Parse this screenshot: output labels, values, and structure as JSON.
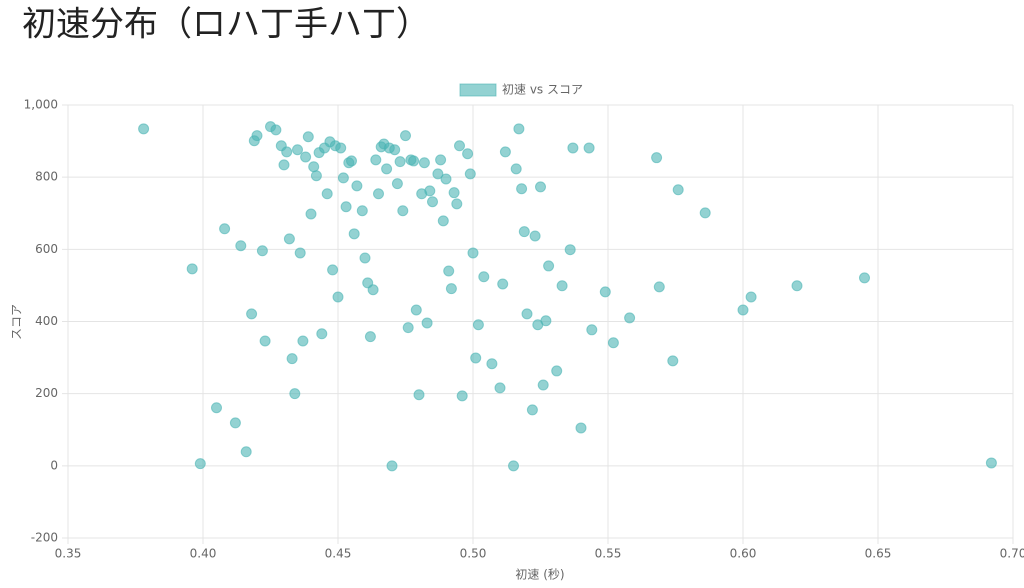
{
  "chart_data": {
    "type": "scatter",
    "title": "初速分布（ロハ丁手ハ丁）",
    "xlabel": "初速 (秒)",
    "ylabel": "スコア",
    "xlim": [
      0.35,
      0.7
    ],
    "xticks": [
      0.35,
      {
        "value": 0.4,
        "label": "0.40"
      },
      0.45,
      {
        "value": 0.5,
        "label": "0.50"
      },
      0.55,
      {
        "value": 0.6,
        "label": "0.60"
      },
      0.65,
      {
        "value": 0.7,
        "label": "0.70"
      }
    ],
    "ylim": [
      -200,
      1000
    ],
    "yticks": [
      -200,
      0,
      200,
      400,
      600,
      800,
      {
        "value": 1000,
        "label": "1,000"
      }
    ],
    "grid": true,
    "legend": "top",
    "series": [
      {
        "name": "初速 vs スコア",
        "color": "rgba(75,180,180,0.6)",
        "x": [
          0.378,
          0.396,
          0.399,
          0.405,
          0.408,
          0.412,
          0.414,
          0.416,
          0.418,
          0.419,
          0.42,
          0.422,
          0.423,
          0.425,
          0.427,
          0.429,
          0.43,
          0.431,
          0.432,
          0.433,
          0.434,
          0.435,
          0.436,
          0.437,
          0.438,
          0.439,
          0.44,
          0.441,
          0.442,
          0.443,
          0.444,
          0.445,
          0.446,
          0.447,
          0.448,
          0.449,
          0.45,
          0.451,
          0.452,
          0.453,
          0.454,
          0.455,
          0.456,
          0.457,
          0.459,
          0.46,
          0.461,
          0.462,
          0.463,
          0.464,
          0.465,
          0.466,
          0.467,
          0.468,
          0.469,
          0.47,
          0.471,
          0.472,
          0.473,
          0.474,
          0.475,
          0.476,
          0.477,
          0.478,
          0.479,
          0.48,
          0.481,
          0.482,
          0.483,
          0.484,
          0.485,
          0.487,
          0.488,
          0.489,
          0.49,
          0.491,
          0.492,
          0.493,
          0.494,
          0.495,
          0.496,
          0.498,
          0.499,
          0.5,
          0.501,
          0.502,
          0.504,
          0.507,
          0.51,
          0.511,
          0.512,
          0.515,
          0.516,
          0.517,
          0.518,
          0.519,
          0.52,
          0.522,
          0.523,
          0.524,
          0.525,
          0.526,
          0.527,
          0.528,
          0.531,
          0.533,
          0.536,
          0.537,
          0.54,
          0.543,
          0.544,
          0.549,
          0.552,
          0.558,
          0.568,
          0.569,
          0.574,
          0.576,
          0.586,
          0.6,
          0.603,
          0.62,
          0.645,
          0.692
        ],
        "values": [
          934,
          546,
          6,
          161,
          657,
          119,
          610,
          39,
          421,
          901,
          915,
          596,
          346,
          940,
          931,
          887,
          834,
          870,
          629,
          297,
          200,
          876,
          590,
          346,
          856,
          912,
          698,
          829,
          804,
          868,
          366,
          881,
          754,
          898,
          543,
          887,
          468,
          881,
          798,
          718,
          840,
          845,
          643,
          776,
          707,
          576,
          507,
          358,
          488,
          848,
          754,
          884,
          892,
          823,
          881,
          0,
          876,
          782,
          843,
          707,
          915,
          383,
          848,
          845,
          432,
          197,
          754,
          840,
          396,
          762,
          732,
          809,
          848,
          679,
          795,
          540,
          491,
          757,
          726,
          887,
          194,
          865,
          809,
          590,
          299,
          391,
          524,
          283,
          216,
          504,
          870,
          0,
          823,
          934,
          768,
          649,
          421,
          155,
          637,
          391,
          773,
          224,
          402,
          554,
          263,
          499,
          599,
          881,
          105,
          881,
          377,
          482,
          341,
          410,
          854,
          496,
          291,
          765,
          701,
          432,
          468,
          499,
          521,
          8
        ]
      }
    ]
  }
}
